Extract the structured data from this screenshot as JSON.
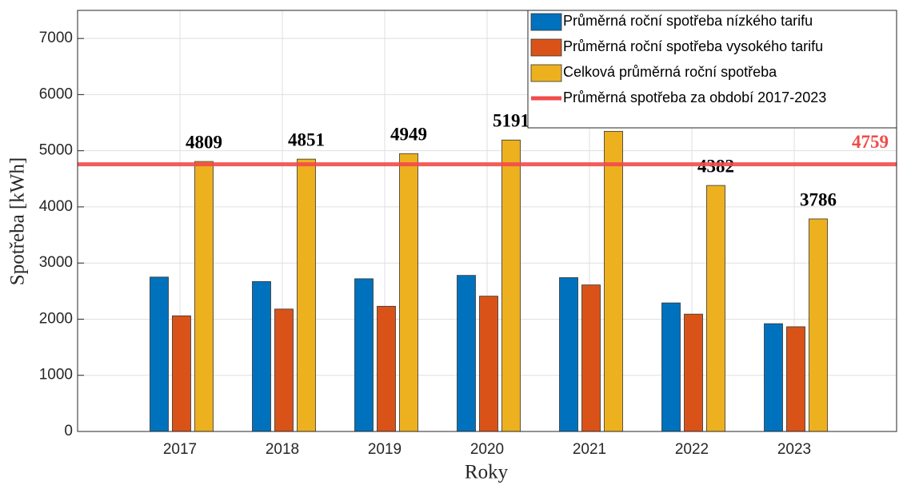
{
  "chart_data": {
    "type": "bar",
    "x": [
      2017,
      2018,
      2019,
      2020,
      2021,
      2022,
      2023
    ],
    "xlim": [
      2016,
      2024
    ],
    "xticks": [
      2017,
      2018,
      2019,
      2020,
      2021,
      2022,
      2023
    ],
    "ylim": [
      0,
      7500
    ],
    "yticks": [
      0,
      1000,
      2000,
      3000,
      4000,
      5000,
      6000,
      7000
    ],
    "xlabel": "Roky",
    "ylabel": "Spotřeba [kWh]",
    "grid": true,
    "legend": "top-right",
    "series": [
      {
        "name": "Průměrná roční spotřeba nízkého tarifu",
        "color": "#0072BD",
        "values": [
          2750,
          2670,
          2720,
          2780,
          2740,
          2290,
          1920
        ]
      },
      {
        "name": "Průměrná roční spotřeba vysokého tarifu",
        "color": "#D95319",
        "values": [
          2060,
          2180,
          2230,
          2410,
          2610,
          2090,
          1865
        ]
      },
      {
        "name": "Celková průměrná roční spotřeba",
        "color": "#EDB120",
        "values": [
          4809,
          4851,
          4949,
          5191,
          5346,
          4382,
          3786
        ],
        "show_labels": true
      }
    ],
    "reference_line": {
      "name": "Průměrná spotřeba za období 2017-2023",
      "value": 4759,
      "color": "#F24A4A"
    }
  }
}
